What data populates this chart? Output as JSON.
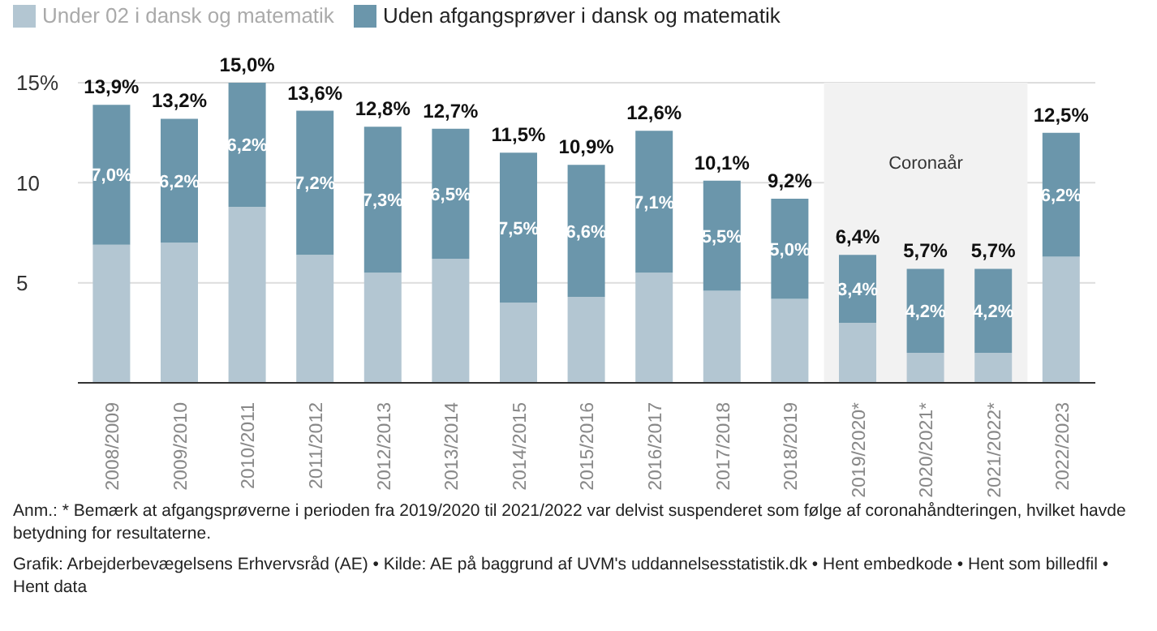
{
  "chart_data": {
    "type": "bar",
    "stacked": true,
    "categories": [
      "2008/2009",
      "2009/2010",
      "2010/2011",
      "2011/2012",
      "2012/2013",
      "2013/2014",
      "2014/2015",
      "2015/2016",
      "2016/2017",
      "2017/2018",
      "2018/2019",
      "2019/2020*",
      "2020/2021*",
      "2021/2022*",
      "2022/2023"
    ],
    "series": [
      {
        "name": "Under 02 i dansk og matematik",
        "color": "#b3c6d2",
        "values": [
          6.9,
          7.0,
          8.8,
          6.4,
          5.5,
          6.2,
          4.0,
          4.3,
          5.5,
          4.6,
          4.2,
          3.0,
          1.5,
          1.5,
          6.3
        ]
      },
      {
        "name": "Uden afgangsprøver i dansk og matematik",
        "color": "#6b96ab",
        "values": [
          7.0,
          6.2,
          6.2,
          7.2,
          7.3,
          6.5,
          7.5,
          6.6,
          7.1,
          5.5,
          5.0,
          3.4,
          4.2,
          4.2,
          6.2
        ],
        "value_labels": [
          "7,0%",
          "6,2%",
          "6,2%",
          "7,2%",
          "7,3%",
          "6,5%",
          "7,5%",
          "6,6%",
          "7,1%",
          "5,5%",
          "5,0%",
          "3,4%",
          "4,2%",
          "4,2%",
          "6,2%"
        ]
      }
    ],
    "totals": [
      "13,9%",
      "13,2%",
      "15,0%",
      "13,6%",
      "12,8%",
      "12,7%",
      "11,5%",
      "10,9%",
      "12,6%",
      "10,1%",
      "9,2%",
      "6,4%",
      "5,7%",
      "5,7%",
      "12,5%"
    ],
    "ylim": [
      0,
      15
    ],
    "yticks": [
      {
        "value": 5,
        "label": "5"
      },
      {
        "value": 10,
        "label": "10"
      },
      {
        "value": 15,
        "label": "15%"
      }
    ],
    "grid": "y",
    "legend": "top left",
    "bands": [
      {
        "axis": "x",
        "from": "2019/2020*",
        "to": "2021/2022*",
        "label": "Coronaår",
        "color": "#f2f2f2"
      }
    ],
    "annotations": [
      "Anm.: * Bemærk at afgangsprøverne i perioden fra 2019/2020 til 2021/2022 var delvist suspenderet som følge af coronahåndteringen, hvilket havde betydning for resultaterne.",
      "Grafik: Arbejderbevægelsens Erhvervsråd (AE) • Kilde: AE på baggrund af UVM's uddannelsesstatistik.dk • Hent embedkode • Hent som billedfil • Hent data"
    ]
  }
}
